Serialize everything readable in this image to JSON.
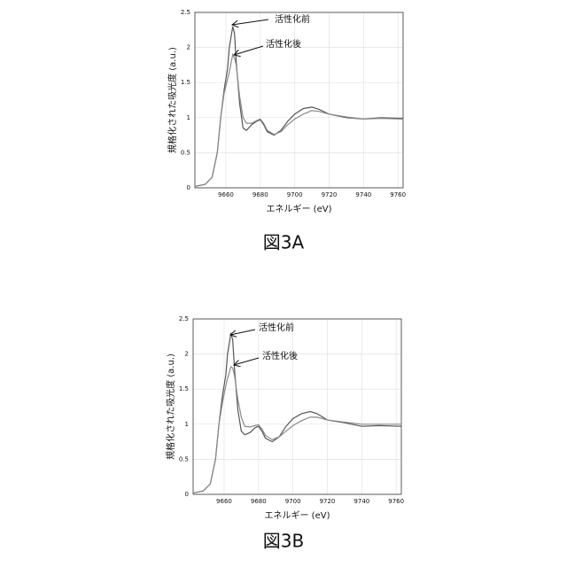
{
  "chart_data": [
    {
      "type": "line",
      "caption": "図3A",
      "x_label": "エネルギー (eV)",
      "y_label": "規格化された吸光度 (a.u.)",
      "xlim": [
        9642,
        9763
      ],
      "ylim": [
        0,
        2.5
      ],
      "xticks": [
        9660,
        9680,
        9700,
        9720,
        9740,
        9760
      ],
      "yticks": [
        0,
        0.5,
        1,
        1.5,
        2,
        2.5
      ],
      "grid": true,
      "x": [
        9642,
        9648,
        9652,
        9655,
        9657,
        9659,
        9661,
        9662,
        9664,
        9665,
        9666,
        9668,
        9670,
        9672,
        9675,
        9678,
        9680,
        9682,
        9684,
        9688,
        9692,
        9696,
        9700,
        9705,
        9710,
        9714,
        9720,
        9730,
        9740,
        9750,
        9763
      ],
      "series": [
        {
          "name": "活性化前",
          "color": "#555555",
          "values": [
            0.02,
            0.05,
            0.15,
            0.5,
            1.0,
            1.4,
            1.7,
            2.0,
            2.3,
            2.2,
            1.8,
            1.2,
            0.85,
            0.82,
            0.9,
            0.95,
            0.97,
            0.9,
            0.8,
            0.75,
            0.82,
            0.95,
            1.05,
            1.13,
            1.15,
            1.12,
            1.05,
            1.0,
            0.98,
            1.0,
            0.99
          ]
        },
        {
          "name": "活性化後",
          "color": "#8a8a8a",
          "values": [
            0.02,
            0.05,
            0.15,
            0.5,
            1.0,
            1.35,
            1.55,
            1.65,
            1.9,
            1.85,
            1.75,
            1.3,
            1.0,
            0.92,
            0.92,
            0.96,
            0.98,
            0.92,
            0.82,
            0.76,
            0.8,
            0.9,
            0.98,
            1.05,
            1.1,
            1.09,
            1.05,
            1.01,
            0.98,
            0.99,
            0.98
          ]
        }
      ]
    },
    {
      "type": "line",
      "caption": "図3B",
      "x_label": "エネルギー (eV)",
      "y_label": "規格化された吸光度 (a.u.)",
      "xlim": [
        9642,
        9763
      ],
      "ylim": [
        0,
        2.5
      ],
      "xticks": [
        9660,
        9680,
        9700,
        9720,
        9740,
        9760
      ],
      "yticks": [
        0,
        0.5,
        1,
        1.5,
        2,
        2.5
      ],
      "grid": true,
      "x": [
        9642,
        9648,
        9652,
        9655,
        9657,
        9659,
        9661,
        9662,
        9664,
        9665,
        9666,
        9668,
        9670,
        9672,
        9675,
        9678,
        9680,
        9682,
        9684,
        9688,
        9692,
        9696,
        9700,
        9705,
        9710,
        9714,
        9720,
        9730,
        9740,
        9750,
        9763
      ],
      "series": [
        {
          "name": "活性化前",
          "color": "#555555",
          "values": [
            0.02,
            0.05,
            0.15,
            0.5,
            1.0,
            1.4,
            1.7,
            2.0,
            2.3,
            2.2,
            1.8,
            1.2,
            0.9,
            0.85,
            0.88,
            0.95,
            0.97,
            0.9,
            0.8,
            0.75,
            0.82,
            0.97,
            1.08,
            1.15,
            1.18,
            1.15,
            1.06,
            1.02,
            0.97,
            0.98,
            0.97
          ]
        },
        {
          "name": "活性化後",
          "color": "#8a8a8a",
          "values": [
            0.02,
            0.05,
            0.15,
            0.5,
            1.0,
            1.3,
            1.55,
            1.65,
            1.82,
            1.8,
            1.7,
            1.35,
            1.1,
            0.97,
            0.96,
            0.98,
            0.99,
            0.93,
            0.84,
            0.78,
            0.82,
            0.9,
            0.98,
            1.05,
            1.1,
            1.1,
            1.06,
            1.03,
            1.0,
            1.0,
            1.0
          ]
        }
      ]
    }
  ]
}
